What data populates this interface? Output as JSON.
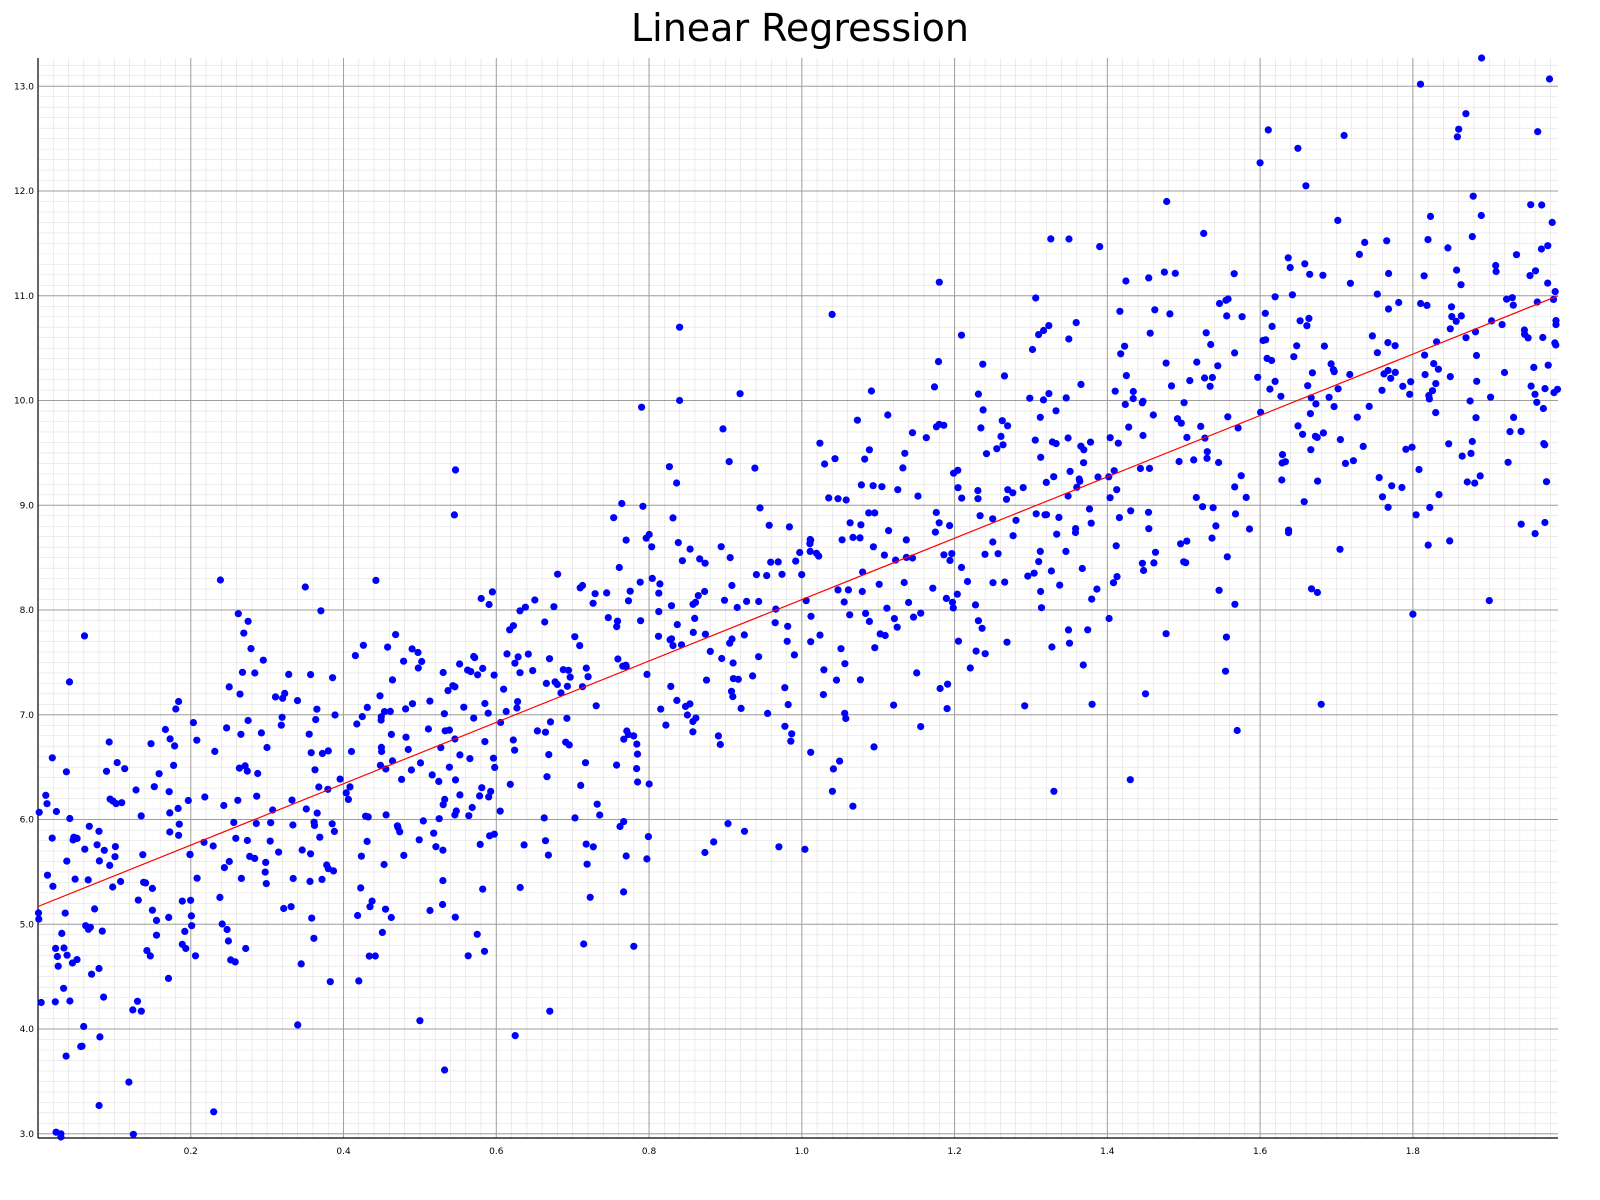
{
  "chart_data": {
    "type": "scatter",
    "title": "Linear Regression",
    "xlabel": "",
    "ylabel": "",
    "xlim": [
      0.0,
      1.99
    ],
    "ylim": [
      2.96,
      13.27
    ],
    "grid": true,
    "x_ticks": [
      0.2,
      0.4,
      0.6,
      0.8,
      1.0,
      1.2,
      1.4,
      1.6,
      1.8
    ],
    "x_tick_labels": [
      "0.2",
      "0.4",
      "0.6",
      "0.8",
      "1.0",
      "1.2",
      "1.4",
      "1.6",
      "1.8"
    ],
    "y_ticks": [
      3.0,
      4.0,
      5.0,
      6.0,
      7.0,
      8.0,
      9.0,
      10.0,
      11.0,
      12.0,
      13.0
    ],
    "y_tick_labels": [
      "3.0",
      "4.0",
      "5.0",
      "6.0",
      "7.0",
      "8.0",
      "9.0",
      "10.0",
      "11.0",
      "12.0",
      "13.0"
    ],
    "colors": {
      "points": "#0000ff",
      "fit_line": "#ff0000",
      "major_grid": "#9e9e9e",
      "minor_grid": "#e0e0e0"
    },
    "fit_line": {
      "slope": 2.93,
      "intercept": 5.17,
      "x": [
        0.0,
        1.99
      ],
      "y": [
        5.17,
        11.0
      ]
    },
    "scatter_outliers": [
      {
        "x": 1.89,
        "y": 13.27
      },
      {
        "x": 1.81,
        "y": 13.02
      },
      {
        "x": 1.71,
        "y": 12.53
      },
      {
        "x": 1.86,
        "y": 12.59
      },
      {
        "x": 1.6,
        "y": 12.27
      },
      {
        "x": 1.66,
        "y": 12.05
      },
      {
        "x": 0.84,
        "y": 10.7
      },
      {
        "x": 1.18,
        "y": 11.13
      },
      {
        "x": 1.39,
        "y": 11.47
      },
      {
        "x": 0.84,
        "y": 10.0
      },
      {
        "x": 0.35,
        "y": 8.22
      },
      {
        "x": 0.67,
        "y": 4.17
      },
      {
        "x": 0.5,
        "y": 4.08
      },
      {
        "x": 0.34,
        "y": 4.04
      },
      {
        "x": 0.23,
        "y": 3.21
      },
      {
        "x": 0.08,
        "y": 3.27
      },
      {
        "x": 0.03,
        "y": 3.0
      },
      {
        "x": 0.03,
        "y": 2.97
      },
      {
        "x": 0.78,
        "y": 4.79
      },
      {
        "x": 0.42,
        "y": 4.46
      },
      {
        "x": 1.43,
        "y": 6.38
      },
      {
        "x": 1.33,
        "y": 6.27
      },
      {
        "x": 1.04,
        "y": 6.27
      },
      {
        "x": 0.97,
        "y": 5.74
      },
      {
        "x": 1.57,
        "y": 6.85
      },
      {
        "x": 1.68,
        "y": 7.1
      },
      {
        "x": 1.9,
        "y": 8.09
      },
      {
        "x": 1.96,
        "y": 8.73
      },
      {
        "x": 1.8,
        "y": 7.96
      },
      {
        "x": 1.82,
        "y": 8.62
      },
      {
        "x": 1.45,
        "y": 7.2
      },
      {
        "x": 1.38,
        "y": 7.1
      }
    ],
    "scatter_cloud": {
      "n_points": 1000,
      "x_range": [
        0.0,
        1.99
      ],
      "y_model": "5.17 + 2.93*x",
      "y_noise_sd": 0.95
    }
  }
}
